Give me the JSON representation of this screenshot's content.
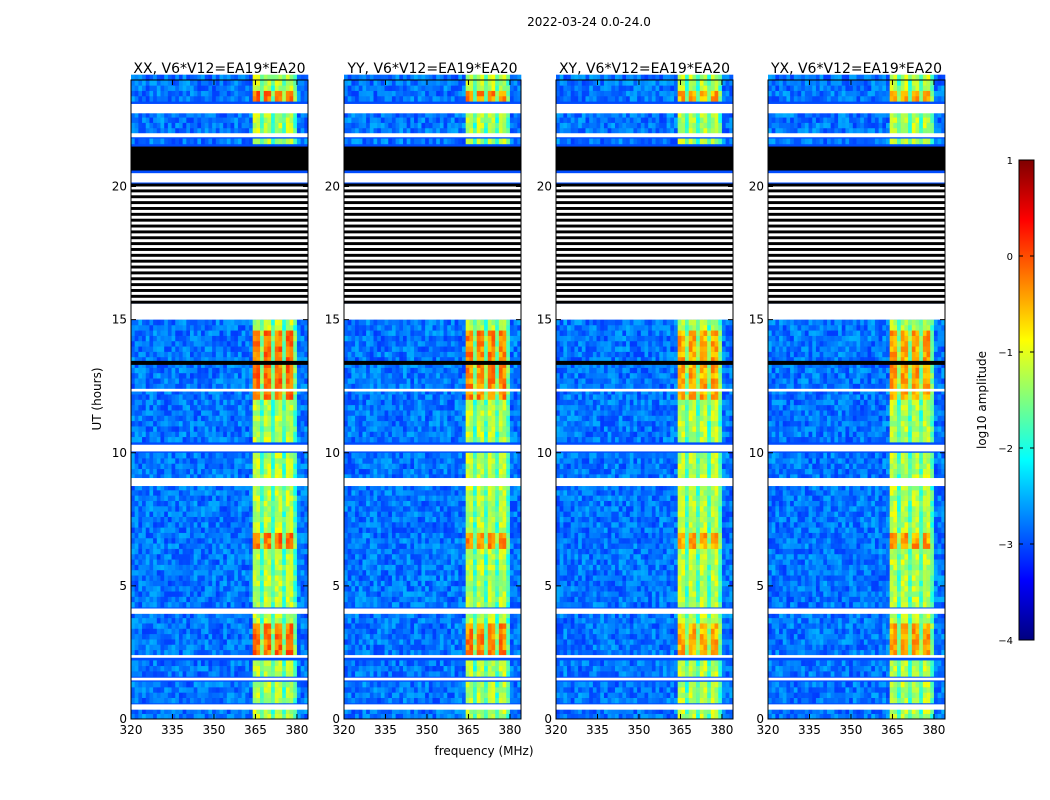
{
  "chart_data": {
    "type": "heatmap",
    "title": "2022-03-24 0.0-24.0",
    "xlabel": "frequency (MHz)",
    "ylabel": "UT (hours)",
    "xlim": [
      320,
      384
    ],
    "ylim": [
      0,
      24
    ],
    "x_ticks": [
      320,
      335,
      350,
      365,
      380
    ],
    "x_tick_labels": [
      "320",
      "335",
      "350",
      "365",
      "380"
    ],
    "y_ticks": [
      0,
      5,
      10,
      15,
      20
    ],
    "y_tick_labels": [
      "0",
      "5",
      "10",
      "15",
      "20"
    ],
    "panels": [
      {
        "title": "XX, V6*V12=EA19*EA20",
        "signal_scale": 1.15
      },
      {
        "title": "YY, V6*V12=EA19*EA20",
        "signal_scale": 1.0
      },
      {
        "title": "XY, V6*V12=EA19*EA20",
        "signal_scale": 0.8
      },
      {
        "title": "YX, V6*V12=EA19*EA20",
        "signal_scale": 0.85
      }
    ],
    "signal_band_mhz": [
      364,
      380
    ],
    "bright_channels_mhz": [
      364.5,
      369.5,
      373.5,
      377.5
    ],
    "flagged_hours_white": [
      [
        0.35,
        0.55
      ],
      [
        1.45,
        1.55
      ],
      [
        2.3,
        2.4
      ],
      [
        3.95,
        4.15
      ],
      [
        8.75,
        9.05
      ],
      [
        10.05,
        10.3
      ],
      [
        12.3,
        12.4
      ],
      [
        15.0,
        15.6
      ],
      [
        20.15,
        20.5
      ],
      [
        21.85,
        22.0
      ],
      [
        22.75,
        23.1
      ]
    ],
    "flagged_hours_black": [
      [
        20.6,
        21.5
      ],
      [
        13.3,
        13.45
      ]
    ],
    "dense_flag_hours": [
      15.6,
      20.1
    ],
    "colorbar": {
      "label": "log10 amplitude",
      "range": [
        -4,
        1
      ],
      "ticks": [
        1,
        0,
        -1,
        -2,
        -3,
        -4
      ],
      "tick_labels": [
        "1",
        "0",
        "−1",
        "−2",
        "−3",
        "−4"
      ],
      "colormap": "jet",
      "colors": [
        "#00007f",
        "#0000ff",
        "#007fff",
        "#00ffff",
        "#7fff7f",
        "#ffff00",
        "#ff7f00",
        "#ff0000",
        "#7f0000"
      ]
    }
  }
}
